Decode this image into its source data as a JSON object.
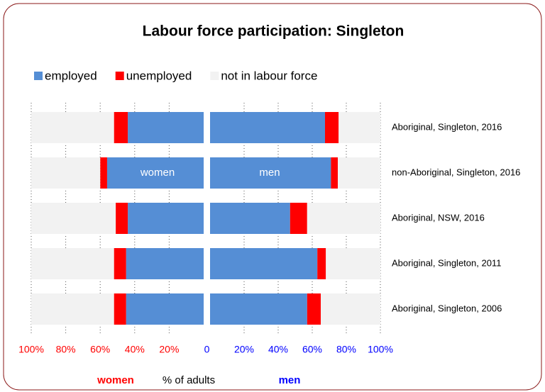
{
  "chart_data": {
    "type": "butterfly-stacked-bar",
    "title": "Labour force participation: Singleton",
    "categories": [
      "Aboriginal, Singleton, 2016",
      "non-Aboriginal, Singleton, 2016",
      "Aboriginal, NSW, 2016",
      "Aboriginal, Singleton, 2011",
      "Aboriginal, Singleton, 2006"
    ],
    "series": [
      {
        "name": "employed",
        "color": "#558ed5",
        "women": [
          44,
          56,
          44,
          45,
          45
        ],
        "men": [
          67.5,
          71,
          47,
          63,
          57
        ]
      },
      {
        "name": "unemployed",
        "color": "#ff0000",
        "women": [
          8,
          4,
          7,
          7,
          7
        ],
        "men": [
          8,
          4,
          10,
          5,
          8
        ]
      },
      {
        "name": "not in labour force",
        "color": "#f2f2f2",
        "women": [
          48,
          40,
          49,
          48,
          48
        ],
        "men": [
          24.5,
          25,
          43,
          32,
          35
        ]
      }
    ],
    "annotations": [
      "women",
      "men"
    ],
    "xlim": [
      0,
      100
    ],
    "women_xticks": [
      {
        "value": 100,
        "label": "100%"
      },
      {
        "value": 80,
        "label": "80%"
      },
      {
        "value": 60,
        "label": "60%"
      },
      {
        "value": 40,
        "label": "40%"
      },
      {
        "value": 20,
        "label": "20%"
      }
    ],
    "zero_tick": 0,
    "men_xticks": [
      {
        "value": 20,
        "label": "20%"
      },
      {
        "value": 40,
        "label": "40%"
      },
      {
        "value": 60,
        "label": "60%"
      },
      {
        "value": 80,
        "label": "80%"
      },
      {
        "value": 100,
        "label": "100%"
      }
    ],
    "women_color": "#ff0000",
    "men_color": "#0000ff",
    "axis_labels": {
      "left": "women",
      "center": "% of adults",
      "right": "men"
    },
    "grid": true
  }
}
